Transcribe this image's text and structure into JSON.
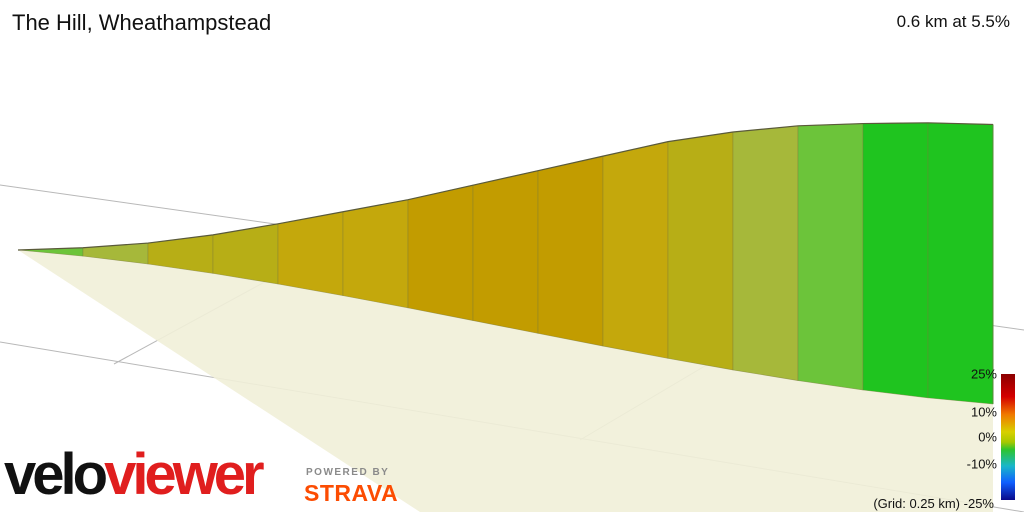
{
  "header": {
    "title": "The Hill, Wheathampstead",
    "summary": "0.6 km at 5.5%"
  },
  "footer": {
    "grid_note": "(Grid: 0.25 km)",
    "logo_part1": "velo",
    "logo_part2": "viewer",
    "powered_by": "POWERED BY",
    "strava": "STRAVA"
  },
  "legend": {
    "labels": [
      "25%",
      "10%",
      "0%",
      "-10%",
      "-25%"
    ],
    "values": [
      25,
      10,
      0,
      -10,
      -25
    ],
    "colors": {
      "max": "#8b0000",
      "steep": "#d8d000",
      "flat": "#2ec42e",
      "descent": "#1060ff",
      "min": "#0a0a8a"
    }
  },
  "colors": {
    "logo_dark": "#111111",
    "logo_red": "#e01e1e",
    "strava_orange": "#fc4c02"
  },
  "chart_data": {
    "type": "area",
    "title": "The Hill, Wheathampstead",
    "subtitle": "0.6 km at 5.5%",
    "xlabel": "",
    "ylabel": "",
    "grid": true,
    "x": [
      0,
      0.04,
      0.08,
      0.12,
      0.16,
      0.2,
      0.24,
      0.28,
      0.32,
      0.36,
      0.4,
      0.44,
      0.48,
      0.52,
      0.56,
      0.6
    ],
    "y": [
      0,
      0.5,
      1.5,
      3.2,
      5.5,
      8.0,
      10.5,
      13.5,
      16.5,
      19.5,
      22.5,
      24.5,
      25.8,
      26.3,
      26.5,
      26.2
    ],
    "gradients": [
      2,
      3,
      5,
      6,
      7,
      7,
      8,
      8,
      8,
      7,
      5,
      3,
      1,
      0,
      -1
    ]
  }
}
